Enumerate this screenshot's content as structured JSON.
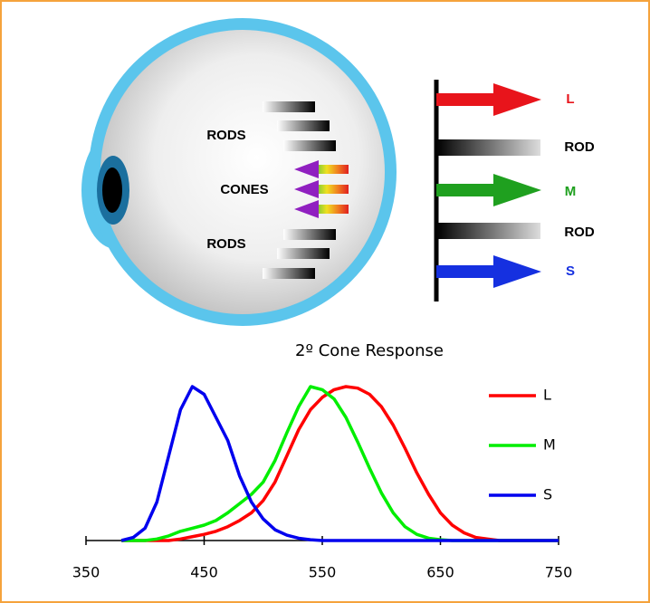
{
  "diagram": {
    "eye_labels": [
      "RODS",
      "CONES",
      "RODS"
    ],
    "receptors": [
      {
        "label": "L",
        "color": "#e8141b"
      },
      {
        "label": "ROD"
      },
      {
        "label": "M",
        "color": "#1fa01f"
      },
      {
        "label": "ROD"
      },
      {
        "label": "S",
        "color": "#1530e0"
      }
    ]
  },
  "chart_data": {
    "type": "line",
    "title": "2º Cone Response",
    "x": [
      380,
      390,
      400,
      410,
      420,
      430,
      440,
      450,
      460,
      470,
      480,
      490,
      500,
      510,
      520,
      530,
      540,
      550,
      560,
      570,
      580,
      590,
      600,
      610,
      620,
      630,
      640,
      650,
      660,
      670,
      680,
      690,
      700,
      710,
      720,
      730,
      740,
      750
    ],
    "series": [
      {
        "name": "L",
        "color": "#ff0000",
        "values": [
          0,
          0,
          0,
          0,
          0,
          0.01,
          0.025,
          0.04,
          0.06,
          0.09,
          0.13,
          0.18,
          0.26,
          0.38,
          0.55,
          0.72,
          0.85,
          0.93,
          0.98,
          1,
          0.99,
          0.95,
          0.87,
          0.75,
          0.6,
          0.44,
          0.3,
          0.18,
          0.1,
          0.05,
          0.02,
          0.01,
          0,
          0,
          0,
          0,
          0,
          0
        ]
      },
      {
        "name": "M",
        "color": "#00ee00",
        "values": [
          0,
          0,
          0,
          0.01,
          0.03,
          0.06,
          0.08,
          0.1,
          0.13,
          0.18,
          0.24,
          0.3,
          0.38,
          0.52,
          0.7,
          0.87,
          1,
          0.98,
          0.92,
          0.8,
          0.64,
          0.47,
          0.31,
          0.18,
          0.09,
          0.04,
          0.015,
          0.005,
          0,
          0,
          0,
          0,
          0,
          0,
          0,
          0,
          0,
          0
        ]
      },
      {
        "name": "S",
        "color": "#0000ee",
        "values": [
          0,
          0.02,
          0.08,
          0.25,
          0.55,
          0.85,
          1,
          0.95,
          0.8,
          0.65,
          0.42,
          0.25,
          0.14,
          0.07,
          0.035,
          0.015,
          0.005,
          0,
          0,
          0,
          0,
          0,
          0,
          0,
          0,
          0,
          0,
          0,
          0,
          0,
          0,
          0,
          0,
          0,
          0,
          0,
          0,
          0
        ]
      }
    ],
    "xlim": [
      350,
      750
    ],
    "xticks": [
      350,
      450,
      550,
      650,
      750
    ],
    "ylim": [
      0,
      1
    ]
  }
}
